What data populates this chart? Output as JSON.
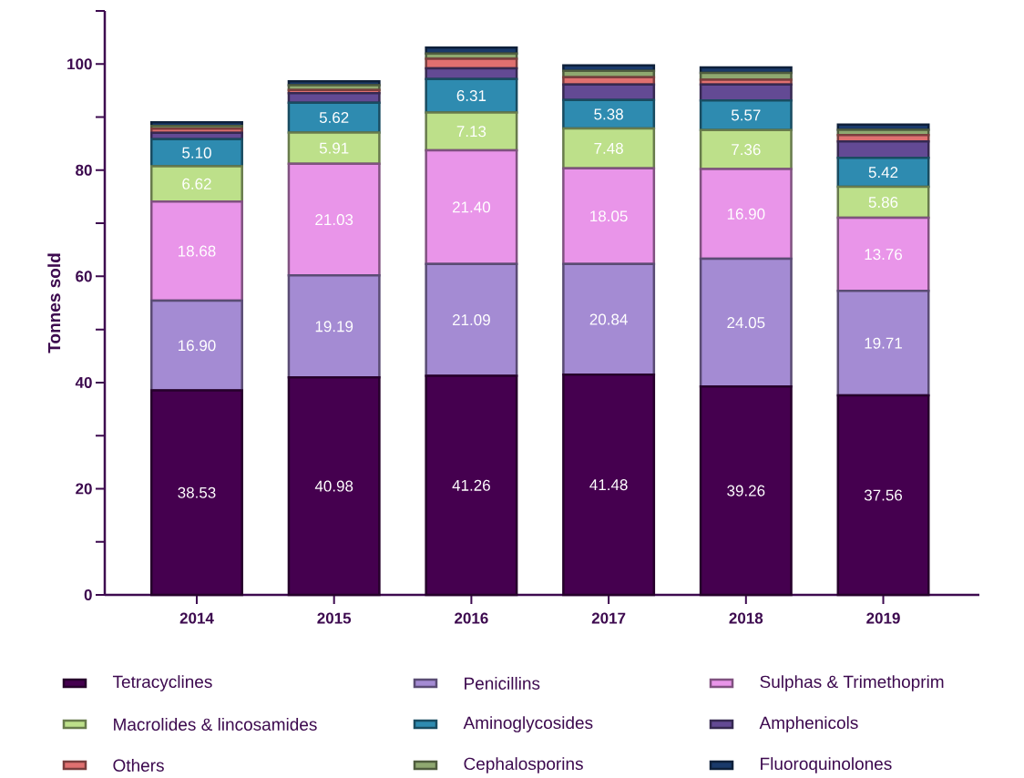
{
  "chart_data": {
    "type": "bar",
    "stacked": true,
    "ylabel": "Tonnes sold",
    "categories": [
      "2014",
      "2015",
      "2016",
      "2017",
      "2018",
      "2019"
    ],
    "series": [
      {
        "name": "Tetracyclines",
        "color": "#45004f",
        "values": [
          38.53,
          40.98,
          41.26,
          41.48,
          39.26,
          37.56
        ],
        "value_labels": [
          "38.53",
          "40.98",
          "41.26",
          "41.48",
          "39.26",
          "37.56"
        ]
      },
      {
        "name": "Penicillins",
        "color": "#a48bd3",
        "values": [
          16.9,
          19.19,
          21.09,
          20.84,
          24.05,
          19.71
        ],
        "value_labels": [
          "16.90",
          "19.19",
          "21.09",
          "20.84",
          "24.05",
          "19.71"
        ]
      },
      {
        "name": "Sulphas & Trimethoprim",
        "color": "#e995e9",
        "values": [
          18.68,
          21.03,
          21.4,
          18.05,
          16.9,
          13.76
        ],
        "value_labels": [
          "18.68",
          "21.03",
          "21.40",
          "18.05",
          "16.90",
          "13.76"
        ]
      },
      {
        "name": "Macrolides & lincosamides",
        "color": "#bde08a",
        "values": [
          6.62,
          5.91,
          7.13,
          7.48,
          7.36,
          5.86
        ],
        "value_labels": [
          "6.62",
          "5.91",
          "7.13",
          "7.48",
          "7.36",
          "5.86"
        ]
      },
      {
        "name": "Aminoglycosides",
        "color": "#2e8bb0",
        "values": [
          5.1,
          5.62,
          6.31,
          5.38,
          5.57,
          5.42
        ],
        "value_labels": [
          "5.10",
          "5.62",
          "6.31",
          "5.38",
          "5.57",
          "5.42"
        ]
      },
      {
        "name": "Amphenicols",
        "color": "#634a94",
        "values": [
          1.2,
          1.8,
          2.0,
          2.9,
          3.0,
          3.1
        ]
      },
      {
        "name": "Others",
        "color": "#e07070",
        "values": [
          0.8,
          0.6,
          1.8,
          1.4,
          0.9,
          1.2
        ]
      },
      {
        "name": "Cephalosporins",
        "color": "#8fa870",
        "values": [
          0.5,
          0.9,
          1.0,
          1.2,
          1.3,
          1.0
        ]
      },
      {
        "name": "Fluoroquinolones",
        "color": "#1a3a6a",
        "values": [
          0.7,
          0.7,
          1.1,
          1.0,
          1.0,
          1.0
        ]
      }
    ],
    "ylim": [
      0,
      110
    ],
    "yticks": [
      0,
      {
        "value": 10,
        "label": null
      },
      20,
      {
        "value": 30,
        "label": null
      },
      40,
      {
        "value": 50,
        "label": null
      },
      60,
      {
        "value": 70,
        "label": null
      },
      80,
      {
        "value": 90,
        "label": null
      },
      100,
      {
        "value": 110,
        "label": null
      }
    ],
    "legend": "bottom"
  }
}
